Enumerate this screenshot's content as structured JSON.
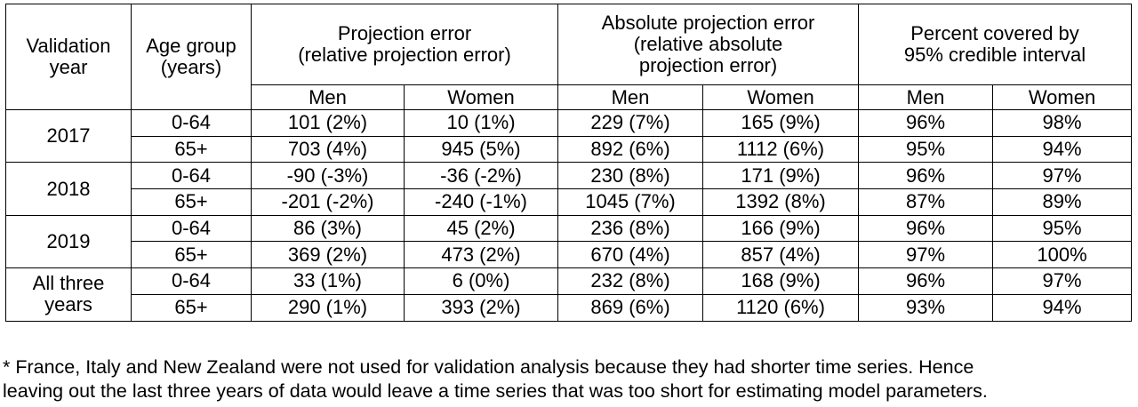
{
  "header": {
    "validation_year": [
      "Validation",
      "year"
    ],
    "age_group": [
      "Age group",
      "(years)"
    ],
    "projection_error": [
      "Projection error",
      "(relative projection error)"
    ],
    "absolute_projection_error": [
      "Absolute projection error",
      "(relative absolute",
      "projection error)"
    ],
    "percent_covered": [
      "Percent covered by",
      "95% credible interval"
    ],
    "men": "Men",
    "women": "Women"
  },
  "rows": [
    {
      "year": "2017",
      "groups": [
        {
          "age": "0-64",
          "cells": [
            "101 (2%)",
            "10 (1%)",
            "229 (7%)",
            "165 (9%)",
            "96%",
            "98%"
          ]
        },
        {
          "age": "65+",
          "cells": [
            "703 (4%)",
            "945 (5%)",
            "892 (6%)",
            "1112 (6%)",
            "95%",
            "94%"
          ]
        }
      ]
    },
    {
      "year": "2018",
      "groups": [
        {
          "age": "0-64",
          "cells": [
            "-90 (-3%)",
            "-36 (-2%)",
            "230 (8%)",
            "171 (9%)",
            "96%",
            "97%"
          ]
        },
        {
          "age": "65+",
          "cells": [
            "-201 (-2%)",
            "-240 (-1%)",
            "1045 (7%)",
            "1392 (8%)",
            "87%",
            "89%"
          ]
        }
      ]
    },
    {
      "year": "2019",
      "groups": [
        {
          "age": "0-64",
          "cells": [
            "86 (3%)",
            "45 (2%)",
            "236 (8%)",
            "166 (9%)",
            "96%",
            "95%"
          ]
        },
        {
          "age": "65+",
          "cells": [
            "369 (2%)",
            "473 (2%)",
            "670 (4%)",
            "857 (4%)",
            "97%",
            "100%"
          ]
        }
      ]
    },
    {
      "year": "All three years",
      "groups": [
        {
          "age": "0-64",
          "cells": [
            "33 (1%)",
            "6 (0%)",
            "232 (8%)",
            "168 (9%)",
            "96%",
            "97%"
          ]
        },
        {
          "age": "65+",
          "cells": [
            "290 (1%)",
            "393 (2%)",
            "869 (6%)",
            "1120 (6%)",
            "93%",
            "94%"
          ]
        }
      ]
    }
  ],
  "footnote": [
    "* France, Italy and New Zealand were not used for validation analysis because they had shorter time series. Hence",
    "leaving out the last three years of data would leave a time series that was too short for estimating model parameters."
  ]
}
